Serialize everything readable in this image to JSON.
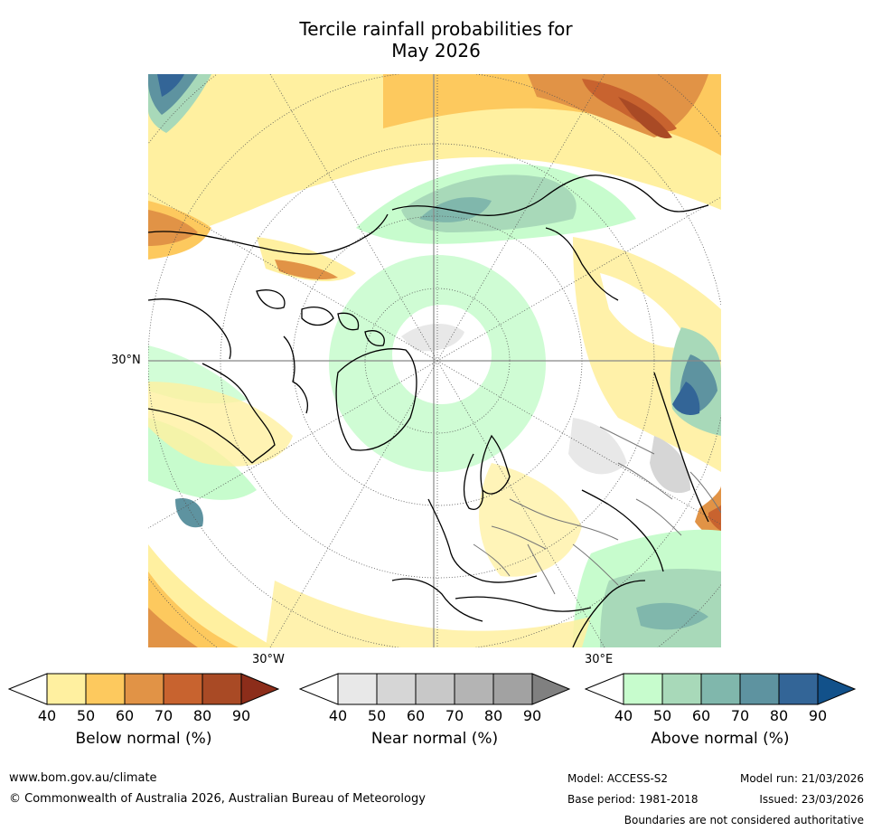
{
  "title_line1": "Tercile rainfall probabilities for",
  "title_line2": "May 2026",
  "map": {
    "lat_label": "30°N",
    "lon_label_left": "30°W",
    "lon_label_right": "30°E"
  },
  "colorbars": [
    {
      "label": "Below normal (%)",
      "ticks": [
        "40",
        "50",
        "60",
        "70",
        "80",
        "90"
      ],
      "colors": [
        "#fff0a0",
        "#fdc95e",
        "#e19346",
        "#c8632f",
        "#a94a25",
        "#8c2d1a"
      ]
    },
    {
      "label": "Near normal (%)",
      "ticks": [
        "40",
        "50",
        "60",
        "70",
        "80",
        "90"
      ],
      "colors": [
        "#e8e8e8",
        "#d6d6d6",
        "#c8c8c8",
        "#b4b4b4",
        "#a2a2a2",
        "#808080"
      ]
    },
    {
      "label": "Above normal (%)",
      "ticks": [
        "40",
        "50",
        "60",
        "70",
        "80",
        "90"
      ],
      "colors": [
        "#c7fccd",
        "#a8d9b9",
        "#80b7ac",
        "#5e93a0",
        "#336597",
        "#12518a"
      ]
    }
  ],
  "footer": {
    "website": "www.bom.gov.au/climate",
    "copyright": "© Commonwealth of Australia 2026, Australian Bureau of Meteorology",
    "model": "Model: ACCESS-S2",
    "model_run": "Model run: 21/03/2026",
    "base_period": "Base period: 1981-2018",
    "issued": "Issued: 23/03/2026",
    "disclaimer": "Boundaries are not considered authoritative"
  }
}
